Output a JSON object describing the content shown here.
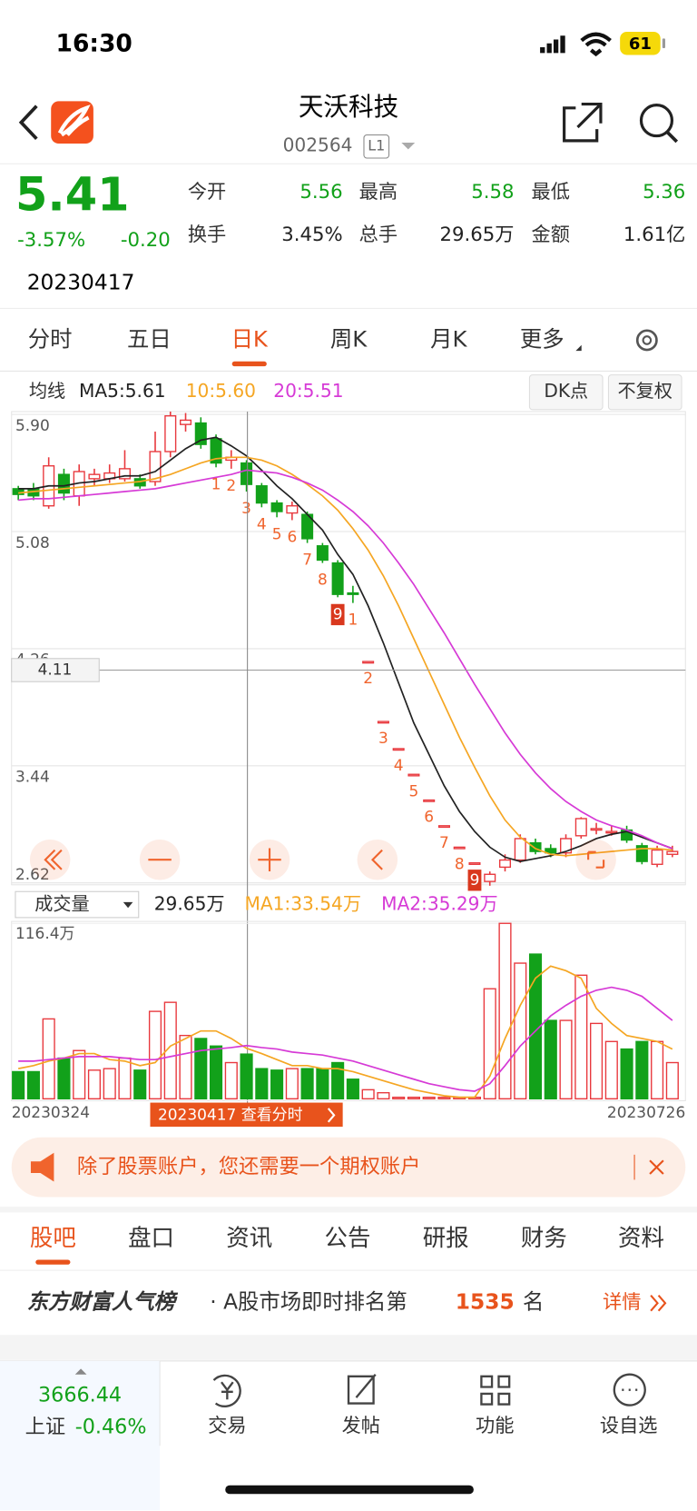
{
  "status": {
    "time": "16:30",
    "battery": "61"
  },
  "header": {
    "title": "天沃科技",
    "code": "002564",
    "market": "L1"
  },
  "quote": {
    "price": "5.41",
    "change_pct": "-3.57%",
    "change": "-0.20",
    "date": "20230417",
    "stats": [
      {
        "label": "今开",
        "value": "5.56"
      },
      {
        "label": "最高",
        "value": "5.58"
      },
      {
        "label": "最低",
        "value": "5.36"
      },
      {
        "label": "换手",
        "value": "3.45%"
      },
      {
        "label": "总手",
        "value": "29.65万"
      },
      {
        "label": "金额",
        "value": "1.61亿"
      }
    ]
  },
  "tabs": {
    "items": [
      "分时",
      "五日",
      "日K",
      "周K",
      "月K",
      "更多"
    ],
    "active": 2
  },
  "chart_data": [
    {
      "type": "candlestick",
      "legend": "均线",
      "buttons": [
        "DK点",
        "不复权"
      ],
      "up_color": "#e8383d",
      "down_color": "#12a11a",
      "ylim": [
        2.62,
        5.9
      ],
      "yticks": [
        {
          "value": 5.9,
          "label": "5.90"
        },
        5.08,
        4.26,
        3.44,
        2.62
      ],
      "grid": true,
      "open": [
        5.38,
        5.38,
        5.26,
        5.48,
        5.33,
        5.45,
        5.45,
        5.45,
        5.45,
        5.43,
        5.64,
        5.83,
        5.84,
        5.73,
        5.58,
        5.56,
        5.4,
        5.28,
        5.21,
        5.2,
        4.98,
        4.86,
        4.65,
        4.17,
        3.75,
        3.56,
        3.38,
        3.2,
        3.02,
        2.87,
        2.76,
        2.63,
        2.73,
        2.78,
        2.9,
        2.86,
        2.83,
        2.95,
        2.99,
        2.98,
        2.99,
        2.88,
        2.75,
        2.82
      ],
      "high": [
        5.4,
        5.42,
        5.6,
        5.52,
        5.55,
        5.52,
        5.55,
        5.65,
        5.48,
        5.78,
        5.92,
        5.91,
        5.88,
        5.76,
        5.65,
        5.58,
        5.42,
        5.3,
        5.29,
        5.22,
        5.0,
        4.88,
        4.7,
        4.17,
        3.75,
        3.56,
        3.38,
        3.2,
        3.02,
        2.87,
        2.76,
        2.7,
        2.82,
        2.96,
        2.93,
        2.89,
        2.96,
        3.08,
        3.04,
        3.02,
        3.02,
        2.9,
        2.88,
        2.88
      ],
      "low": [
        5.3,
        5.3,
        5.24,
        5.3,
        5.26,
        5.4,
        5.42,
        5.43,
        5.38,
        5.4,
        5.6,
        5.78,
        5.66,
        5.53,
        5.52,
        5.36,
        5.25,
        5.18,
        5.16,
        5.0,
        4.86,
        4.62,
        4.58,
        4.17,
        3.75,
        3.56,
        3.38,
        3.2,
        3.02,
        2.87,
        2.76,
        2.6,
        2.7,
        2.76,
        2.82,
        2.8,
        2.8,
        2.93,
        2.96,
        2.95,
        2.9,
        2.75,
        2.73,
        2.8
      ],
      "close": [
        5.34,
        5.33,
        5.54,
        5.35,
        5.5,
        5.48,
        5.49,
        5.52,
        5.4,
        5.64,
        5.89,
        5.86,
        5.69,
        5.56,
        5.6,
        5.41,
        5.28,
        5.22,
        5.26,
        5.03,
        4.88,
        4.64,
        4.64,
        4.17,
        3.75,
        3.56,
        3.38,
        3.2,
        3.02,
        2.87,
        2.76,
        2.68,
        2.78,
        2.93,
        2.84,
        2.83,
        2.93,
        3.07,
        3.0,
        2.98,
        2.92,
        2.77,
        2.85,
        2.84
      ],
      "series": [
        {
          "name": "MA5:5.61",
          "color": "#222222",
          "values": [
            5.38,
            5.38,
            5.4,
            5.4,
            5.42,
            5.43,
            5.45,
            5.47,
            5.47,
            5.5,
            5.58,
            5.66,
            5.72,
            5.74,
            5.68,
            5.61,
            5.51,
            5.4,
            5.31,
            5.2,
            5.09,
            4.92,
            4.78,
            4.56,
            4.3,
            4.02,
            3.74,
            3.52,
            3.3,
            3.12,
            2.98,
            2.87,
            2.8,
            2.77,
            2.79,
            2.81,
            2.84,
            2.88,
            2.93,
            2.96,
            2.98,
            2.94,
            2.9,
            2.86
          ]
        },
        {
          "name": "10:5.60",
          "color": "#f5a623",
          "values": [
            5.35,
            5.36,
            5.37,
            5.38,
            5.39,
            5.4,
            5.41,
            5.42,
            5.43,
            5.45,
            5.48,
            5.52,
            5.56,
            5.59,
            5.6,
            5.6,
            5.58,
            5.54,
            5.48,
            5.41,
            5.33,
            5.23,
            5.1,
            4.95,
            4.77,
            4.56,
            4.33,
            4.1,
            3.87,
            3.64,
            3.43,
            3.23,
            3.06,
            2.94,
            2.86,
            2.82,
            2.81,
            2.82,
            2.83,
            2.84,
            2.85,
            2.86,
            2.86,
            2.85
          ]
        },
        {
          "name": "20:5.51",
          "color": "#d63ad6",
          "values": [
            5.3,
            5.31,
            5.31,
            5.32,
            5.33,
            5.34,
            5.35,
            5.36,
            5.37,
            5.38,
            5.4,
            5.42,
            5.44,
            5.46,
            5.48,
            5.51,
            5.5,
            5.49,
            5.46,
            5.42,
            5.37,
            5.3,
            5.22,
            5.12,
            5.0,
            4.86,
            4.71,
            4.54,
            4.37,
            4.19,
            4.01,
            3.84,
            3.67,
            3.52,
            3.39,
            3.28,
            3.19,
            3.12,
            3.06,
            3.02,
            2.99,
            2.95,
            2.9,
            2.86
          ]
        }
      ],
      "crosshair": 4.11,
      "counts": [
        {
          "candle": 13,
          "n": 1
        },
        {
          "candle": 14,
          "n": 2
        },
        {
          "candle": 15,
          "n": 3
        },
        {
          "candle": 16,
          "n": 4
        },
        {
          "candle": 17,
          "n": 5
        },
        {
          "candle": 18,
          "n": 6
        },
        {
          "candle": 19,
          "n": 7
        },
        {
          "candle": 20,
          "n": 8
        },
        {
          "candle": 21,
          "n": 9,
          "highlight": true
        },
        {
          "candle": 22,
          "n": 1
        },
        {
          "candle": 23,
          "n": 2
        },
        {
          "candle": 24,
          "n": 3
        },
        {
          "candle": 25,
          "n": 4
        },
        {
          "candle": 26,
          "n": 5
        },
        {
          "candle": 27,
          "n": 6
        },
        {
          "candle": 28,
          "n": 7
        },
        {
          "candle": 29,
          "n": 8
        },
        {
          "candle": 30,
          "n": 9,
          "highlight": true
        }
      ]
    },
    {
      "type": "bar",
      "title": "成交量",
      "current": "29.65万",
      "values": [
        18,
        18,
        53,
        27,
        32,
        19,
        20,
        27,
        19,
        58,
        64,
        42,
        40,
        35,
        24,
        29.65,
        20,
        19,
        20,
        20,
        20,
        24,
        13,
        6,
        4,
        1,
        1,
        1,
        1,
        1,
        1,
        73,
        116.4,
        90,
        96,
        52,
        52,
        82,
        50,
        38,
        33,
        38,
        38,
        24
      ],
      "ylim": [
        0,
        116.4
      ],
      "yticks": [
        {
          "value": 116.4,
          "label": "116.4万"
        }
      ],
      "series": [
        {
          "name": "MA1:33.54万",
          "color": "#f5a623",
          "values": [
            20,
            22,
            25,
            27,
            30,
            30,
            26,
            25,
            22,
            24,
            35,
            40,
            45,
            45,
            40,
            33.54,
            30,
            26,
            22,
            22,
            20,
            20,
            18,
            15,
            12,
            9,
            6,
            4,
            2,
            1,
            1,
            15,
            40,
            62,
            80,
            88,
            85,
            80,
            60,
            50,
            42,
            40,
            38,
            33
          ]
        },
        {
          "name": "MA2:35.29万",
          "color": "#d63ad6",
          "values": [
            25,
            25,
            26,
            27,
            28,
            28,
            28,
            27,
            26,
            26,
            28,
            30,
            32,
            33,
            34,
            35.29,
            34,
            33,
            31,
            30,
            29,
            27,
            25,
            22,
            19,
            16,
            13,
            10,
            8,
            6,
            5,
            10,
            22,
            35,
            45,
            55,
            62,
            68,
            72,
            74,
            72,
            68,
            60,
            52
          ]
        }
      ],
      "start": "20230324",
      "end": "20230726",
      "selected": "20230417 查看分时"
    }
  ],
  "banner": "除了股票账户，您还需要一个期权账户",
  "sections": {
    "items": [
      "股吧",
      "盘口",
      "资讯",
      "公告",
      "研报",
      "财务",
      "资料"
    ],
    "active": 0
  },
  "rank": {
    "title": "东方财富人气榜",
    "text": "· A股市场即时排名第",
    "rank": "1535",
    "unit": "名",
    "more": "详情"
  },
  "footer": {
    "index_value": "3666.44",
    "index_name": "上证",
    "index_change": "-0.46%",
    "buttons": [
      "交易",
      "发帖",
      "功能",
      "设自选"
    ]
  }
}
